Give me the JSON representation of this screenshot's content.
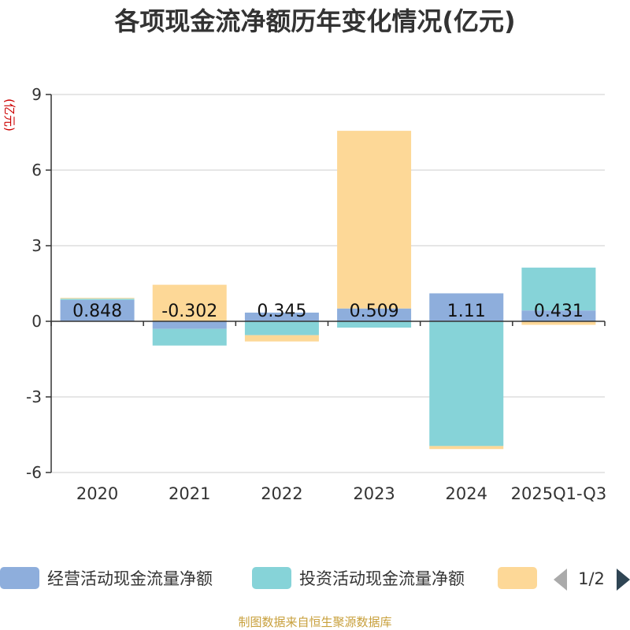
{
  "chart_data": {
    "type": "bar",
    "stacked": true,
    "title": "各项现金流净额历年变化情况(亿元)",
    "ylabel": "(亿元)",
    "xlabel": "",
    "ylim": [
      -6,
      9
    ],
    "yticks": [
      -6,
      -3,
      0,
      3,
      6,
      9
    ],
    "categories": [
      "2020",
      "2021",
      "2022",
      "2023",
      "2024",
      "2025Q1-Q3"
    ],
    "series": [
      {
        "name": "经营活动现金流量净额",
        "color": "#8eaedc",
        "values": [
          0.848,
          -0.302,
          0.345,
          0.509,
          1.11,
          0.431
        ],
        "labels": [
          "0.848",
          "-0.302",
          "0.345",
          "0.509",
          "1.11",
          "0.431"
        ]
      },
      {
        "name": "投资活动现金流量净额",
        "color": "#86d3d8",
        "values": [
          0.05,
          -0.66,
          -0.55,
          -0.25,
          -4.95,
          1.7
        ]
      },
      {
        "name": "",
        "color": "#fdd897",
        "values": [
          0.03,
          1.45,
          -0.25,
          7.05,
          -0.12,
          -0.14
        ]
      }
    ]
  },
  "legend": {
    "page": "1/2",
    "prev_icon": "triangle-left",
    "next_icon": "triangle-right"
  },
  "footer": {
    "source": "制图数据来自恒生聚源数据库"
  }
}
